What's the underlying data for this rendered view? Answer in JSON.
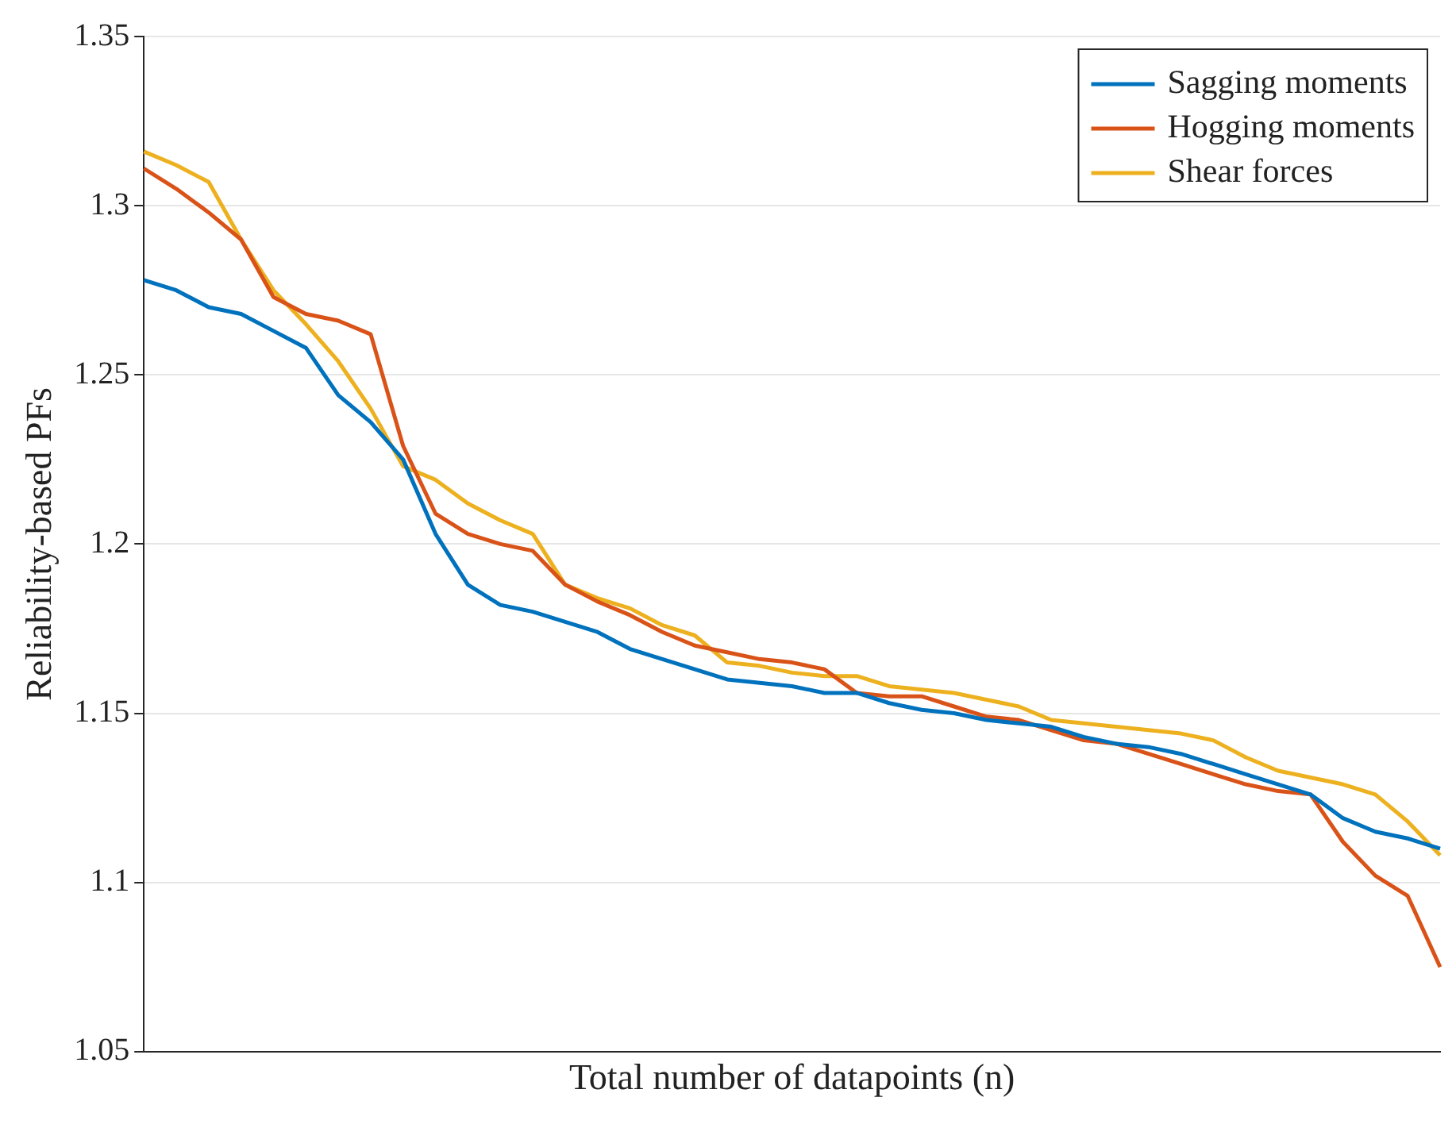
{
  "chart_data": {
    "type": "line",
    "xlabel": "Total number of datapoints (n)",
    "ylabel": "Reliability-based PFs",
    "categories": [
      null,
      null,
      null,
      null,
      null,
      null,
      null,
      null,
      null,
      null,
      null,
      null,
      null,
      null,
      null,
      null,
      null,
      null,
      null,
      null,
      null,
      null,
      null,
      null,
      null,
      null,
      null,
      null,
      null,
      null,
      null,
      null,
      null,
      null,
      null,
      null,
      null,
      null,
      null,
      null,
      null
    ],
    "series": [
      {
        "name": "Sagging moments",
        "color": "#0072bd",
        "values": [
          1.278,
          1.275,
          1.27,
          1.268,
          1.263,
          1.258,
          1.244,
          1.236,
          1.225,
          1.203,
          1.188,
          1.182,
          1.18,
          1.177,
          1.174,
          1.169,
          1.166,
          1.163,
          1.16,
          1.159,
          1.158,
          1.156,
          1.156,
          1.153,
          1.151,
          1.15,
          1.148,
          1.147,
          1.146,
          1.143,
          1.141,
          1.14,
          1.138,
          1.135,
          1.132,
          1.129,
          1.126,
          1.119,
          1.115,
          1.113,
          1.11
        ]
      },
      {
        "name": "Hogging moments",
        "color": "#d95319",
        "values": [
          1.311,
          1.305,
          1.298,
          1.29,
          1.273,
          1.268,
          1.266,
          1.262,
          1.229,
          1.209,
          1.203,
          1.2,
          1.198,
          1.188,
          1.183,
          1.179,
          1.174,
          1.17,
          1.168,
          1.166,
          1.165,
          1.163,
          1.156,
          1.155,
          1.155,
          1.152,
          1.149,
          1.148,
          1.145,
          1.142,
          1.141,
          1.138,
          1.135,
          1.132,
          1.129,
          1.127,
          1.126,
          1.112,
          1.102,
          1.096,
          1.075
        ]
      },
      {
        "name": "Shear forces",
        "color": "#edb120",
        "values": [
          1.316,
          1.312,
          1.307,
          1.29,
          1.275,
          1.265,
          1.254,
          1.24,
          1.223,
          1.219,
          1.212,
          1.207,
          1.203,
          1.188,
          1.184,
          1.181,
          1.176,
          1.173,
          1.165,
          1.164,
          1.162,
          1.161,
          1.161,
          1.158,
          1.157,
          1.156,
          1.154,
          1.152,
          1.148,
          1.147,
          1.146,
          1.145,
          1.144,
          1.142,
          1.137,
          1.133,
          1.131,
          1.129,
          1.126,
          1.118,
          1.108
        ]
      }
    ],
    "ylim": [
      1.05,
      1.35
    ],
    "yticks": [
      1.05,
      1.1,
      1.15,
      1.2,
      1.25,
      1.3,
      1.35
    ],
    "grid": "y",
    "legend": "top right",
    "marker": "none",
    "line_style": "solid",
    "tick_labels": "y"
  }
}
